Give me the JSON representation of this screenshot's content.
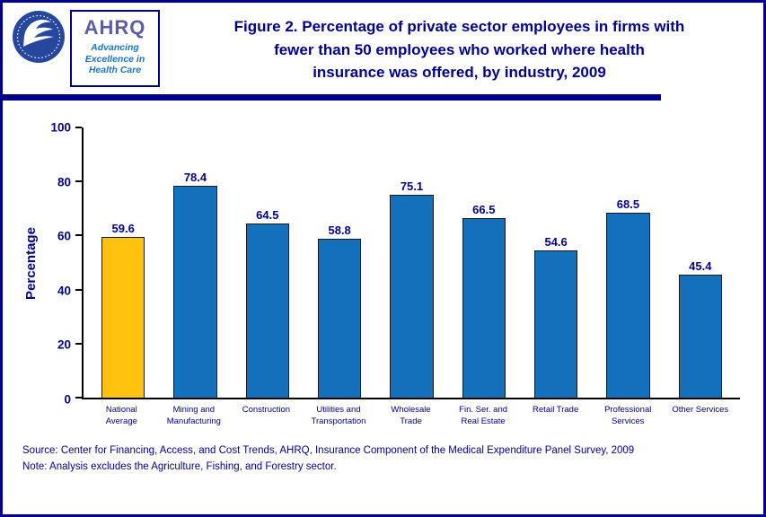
{
  "colors": {
    "navy": "#00008B",
    "bar_default": "#1470BB",
    "bar_highlight": "#FFC20E",
    "axis": "#000000"
  },
  "header": {
    "ahrq": {
      "name": "AHRQ",
      "tagline": "Advancing\nExcellence in\nHealth Care"
    },
    "title": "Figure 2. Percentage of private sector employees in firms with\nfewer than 50 employees who worked where health\ninsurance was offered, by industry, 2009"
  },
  "chart_data": {
    "type": "bar",
    "title": "Figure 2. Percentage of private sector employees in firms with fewer than 50 employees who worked where health insurance was offered, by industry, 2009",
    "categories": [
      "National Average",
      "Mining and Manufacturing",
      "Construction",
      "Utilities and Transportation",
      "Wholesale Trade",
      "Fin. Ser. and Real Estate",
      "Retail Trade",
      "Professional Services",
      "Other Services"
    ],
    "category_label_lines": [
      [
        "National",
        "Average"
      ],
      [
        "Mining and",
        "Manufacturing"
      ],
      [
        "Construction"
      ],
      [
        "Utilities and",
        "Transportation"
      ],
      [
        "Wholesale",
        "Trade"
      ],
      [
        "Fin. Ser. and",
        "Real Estate"
      ],
      [
        "Retail Trade"
      ],
      [
        "Professional",
        "Services"
      ],
      [
        "Other Services"
      ]
    ],
    "values": [
      59.6,
      78.4,
      64.5,
      58.8,
      75.1,
      66.5,
      54.6,
      68.5,
      45.4
    ],
    "highlight_index": 0,
    "xlabel": "",
    "ylabel": "Percentage",
    "ylim": [
      0,
      100
    ],
    "yticks": [
      0,
      20,
      40,
      60,
      80,
      100
    ],
    "grid": false,
    "legend": false
  },
  "footer": {
    "source": "Source: Center for Financing, Access, and Cost Trends, AHRQ, Insurance Component of the Medical Expenditure Panel Survey, 2009",
    "note": "Note: Analysis excludes the Agriculture, Fishing, and Forestry sector."
  }
}
